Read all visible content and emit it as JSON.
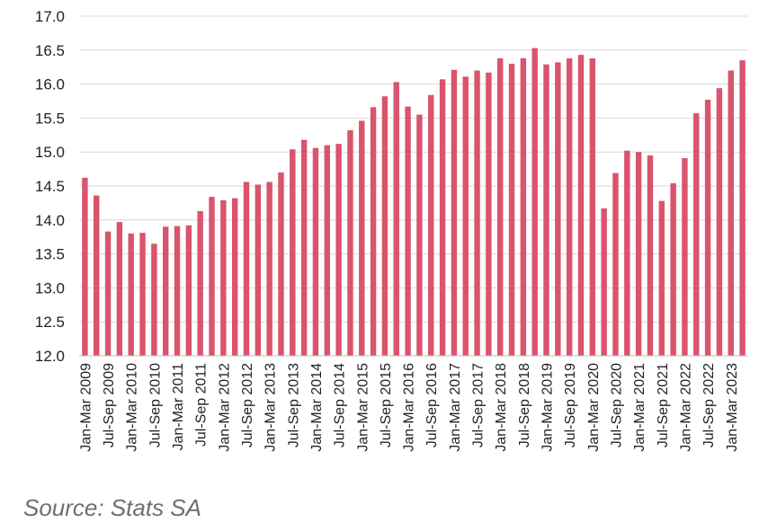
{
  "chart_data": {
    "type": "bar",
    "title": "",
    "xlabel": "",
    "ylabel": "",
    "ylim": [
      12.0,
      17.0
    ],
    "yticks": [
      "12.0",
      "12.5",
      "13.0",
      "13.5",
      "14.0",
      "14.5",
      "15.0",
      "15.5",
      "16.0",
      "16.5",
      "17.0"
    ],
    "grid": "horizontal",
    "bar_color": "#d9546c",
    "categories": [
      "Jan-Mar 2009",
      "Apr-Jun 2009",
      "Jul-Sep 2009",
      "Oct-Dec 2009",
      "Jan-Mar 2010",
      "Apr-Jun 2010",
      "Jul-Sep 2010",
      "Oct-Dec 2010",
      "Jan-Mar 2011",
      "Apr-Jun 2011",
      "Jul-Sep 2011",
      "Oct-Dec 2011",
      "Jan-Mar 2012",
      "Apr-Jun 2012",
      "Jul-Sep 2012",
      "Oct-Dec 2012",
      "Jan-Mar 2013",
      "Apr-Jun 2013",
      "Jul-Sep 2013",
      "Oct-Dec 2013",
      "Jan-Mar 2014",
      "Apr-Jun 2014",
      "Jul-Sep 2014",
      "Oct-Dec 2014",
      "Jan-Mar 2015",
      "Apr-Jun 2015",
      "Jul-Sep 2015",
      "Oct-Dec 2015",
      "Jan-Mar 2016",
      "Apr-Jun 2016",
      "Jul-Sep 2016",
      "Oct-Dec 2016",
      "Jan-Mar 2017",
      "Apr-Jun 2017",
      "Jul-Sep 2017",
      "Oct-Dec 2017",
      "Jan-Mar 2018",
      "Apr-Jun 2018",
      "Jul-Sep 2018",
      "Oct-Dec 2018",
      "Jan-Mar 2019",
      "Apr-Jun 2019",
      "Jul-Sep 2019",
      "Oct-Dec 2019",
      "Jan-Mar 2020",
      "Apr-Jun 2020",
      "Jul-Sep 2020",
      "Oct-Dec 2020",
      "Jan-Mar 2021",
      "Apr-Jun 2021",
      "Jul-Sep 2021",
      "Oct-Dec 2021",
      "Jan-Mar 2022",
      "Apr-Jun 2022",
      "Jul-Sep 2022",
      "Oct-Dec 2022",
      "Jan-Mar 2023",
      "Apr-Jun 2023"
    ],
    "tick_labels": [
      "Jan-Mar 2009",
      "Jul-Sep 2009",
      "Jan-Mar 2010",
      "Jul-Sep 2010",
      "Jan-Mar 2011",
      "Jul-Sep 2011",
      "Jan-Mar 2012",
      "Jul-Sep 2012",
      "Jan-Mar 2013",
      "Jul-Sep 2013",
      "Jan-Mar 2014",
      "Jul-Sep 2014",
      "Jan-Mar 2015",
      "Jul-Sep 2015",
      "Jan-Mar 2016",
      "Jul-Sep 2016",
      "Jan-Mar 2017",
      "Jul-Sep 2017",
      "Jan-Mar 2018",
      "Jul-Sep 2018",
      "Jan-Mar 2019",
      "Jul-Sep 2019",
      "Jan-Mar 2020",
      "Jul-Sep 2020",
      "Jan-Mar 2021",
      "Jul-Sep 2021",
      "Jan-Mar 2022",
      "Jul-Sep 2022",
      "Jan-Mar 2023"
    ],
    "values": [
      14.62,
      14.36,
      13.83,
      13.97,
      13.8,
      13.81,
      13.65,
      13.9,
      13.91,
      13.92,
      14.13,
      14.34,
      14.29,
      14.32,
      14.56,
      14.52,
      14.56,
      14.7,
      15.04,
      15.18,
      15.06,
      15.1,
      15.12,
      15.32,
      15.46,
      15.66,
      15.82,
      16.03,
      15.67,
      15.55,
      15.84,
      16.07,
      16.21,
      16.11,
      16.2,
      16.17,
      16.38,
      16.3,
      16.38,
      16.53,
      16.29,
      16.32,
      16.38,
      16.43,
      16.38,
      14.17,
      14.69,
      15.02,
      15.0,
      14.95,
      14.28,
      14.54,
      14.91,
      15.57,
      15.77,
      15.94,
      16.2,
      16.35
    ]
  },
  "source": "Source: Stats SA"
}
